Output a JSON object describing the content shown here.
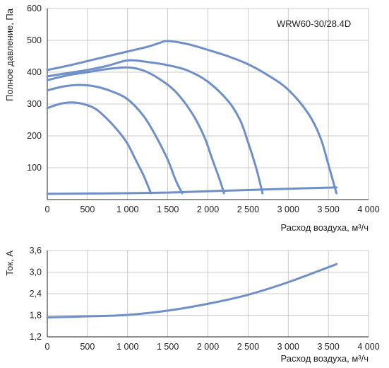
{
  "chart_data": [
    {
      "type": "line",
      "model_label": "WRW60-30/28.4D",
      "xlabel": "Расход воздуха, м³/ч",
      "ylabel": "Полное давление, Па",
      "xlim": [
        0,
        4000
      ],
      "ylim": [
        0,
        600
      ],
      "xticks": [
        0,
        500,
        1000,
        1500,
        2000,
        2500,
        3000,
        3500,
        4000
      ],
      "xtick_labels": [
        "0",
        "500",
        "1 000",
        "1 500",
        "2 000",
        "2 500",
        "3 000",
        "3 500",
        "4 000"
      ],
      "yticks": [
        100,
        200,
        300,
        400,
        500,
        600
      ],
      "ytick_labels": [
        "100",
        "200",
        "300",
        "400",
        "500",
        "600"
      ],
      "grid": true,
      "line_color": "#6f8fc8",
      "series": [
        {
          "points": [
            [
              0,
              407
            ],
            [
              250,
              420
            ],
            [
              500,
              435
            ],
            [
              750,
              450
            ],
            [
              1000,
              465
            ],
            [
              1250,
              480
            ],
            [
              1400,
              492
            ],
            [
              1500,
              498
            ],
            [
              1750,
              488
            ],
            [
              2000,
              470
            ],
            [
              2250,
              450
            ],
            [
              2500,
              425
            ],
            [
              2750,
              390
            ],
            [
              3000,
              345
            ],
            [
              3250,
              270
            ],
            [
              3400,
              195
            ],
            [
              3500,
              110
            ],
            [
              3600,
              20
            ]
          ]
        },
        {
          "points": [
            [
              0,
              387
            ],
            [
              250,
              397
            ],
            [
              500,
              407
            ],
            [
              750,
              420
            ],
            [
              1000,
              437
            ],
            [
              1250,
              432
            ],
            [
              1500,
              422
            ],
            [
              1750,
              405
            ],
            [
              2000,
              370
            ],
            [
              2250,
              310
            ],
            [
              2400,
              250
            ],
            [
              2500,
              180
            ],
            [
              2600,
              100
            ],
            [
              2680,
              20
            ]
          ]
        },
        {
          "points": [
            [
              0,
              375
            ],
            [
              250,
              390
            ],
            [
              500,
              400
            ],
            [
              750,
              410
            ],
            [
              1000,
              415
            ],
            [
              1200,
              405
            ],
            [
              1400,
              378
            ],
            [
              1600,
              338
            ],
            [
              1800,
              272
            ],
            [
              1950,
              200
            ],
            [
              2050,
              130
            ],
            [
              2150,
              60
            ],
            [
              2200,
              20
            ]
          ]
        },
        {
          "points": [
            [
              0,
              343
            ],
            [
              200,
              355
            ],
            [
              400,
              360
            ],
            [
              600,
              355
            ],
            [
              800,
              340
            ],
            [
              1000,
              315
            ],
            [
              1200,
              262
            ],
            [
              1350,
              200
            ],
            [
              1500,
              125
            ],
            [
              1600,
              60
            ],
            [
              1680,
              20
            ]
          ]
        },
        {
          "points": [
            [
              0,
              287
            ],
            [
              150,
              300
            ],
            [
              300,
              305
            ],
            [
              450,
              300
            ],
            [
              600,
              285
            ],
            [
              750,
              252
            ],
            [
              900,
              210
            ],
            [
              1000,
              175
            ],
            [
              1100,
              125
            ],
            [
              1200,
              75
            ],
            [
              1290,
              20
            ]
          ]
        },
        {
          "points": [
            [
              0,
              18
            ],
            [
              500,
              19
            ],
            [
              1000,
              20
            ],
            [
              1500,
              22
            ],
            [
              2000,
              26
            ],
            [
              2500,
              30
            ],
            [
              3000,
              34
            ],
            [
              3600,
              38
            ]
          ]
        }
      ]
    },
    {
      "type": "line",
      "xlabel": "Расход воздуха, м³/ч",
      "ylabel": "Ток, А",
      "xlim": [
        0,
        4000
      ],
      "ylim": [
        1.2,
        3.6
      ],
      "xticks": [
        0,
        500,
        1000,
        1500,
        2000,
        2500,
        3000,
        3500,
        4000
      ],
      "xtick_labels": [
        "0",
        "500",
        "1 000",
        "1 500",
        "2 000",
        "2 500",
        "3 000",
        "3 500",
        "4 000"
      ],
      "yticks": [
        1.2,
        1.8,
        2.4,
        3.0,
        3.6
      ],
      "ytick_labels": [
        "1,2",
        "1,8",
        "2,4",
        "3,0",
        "3,6"
      ],
      "grid": true,
      "line_color": "#6f8fc8",
      "series": [
        {
          "points": [
            [
              0,
              1.74
            ],
            [
              500,
              1.77
            ],
            [
              1000,
              1.81
            ],
            [
              1500,
              1.93
            ],
            [
              2000,
              2.12
            ],
            [
              2500,
              2.37
            ],
            [
              3000,
              2.72
            ],
            [
              3600,
              3.22
            ]
          ]
        }
      ]
    }
  ]
}
